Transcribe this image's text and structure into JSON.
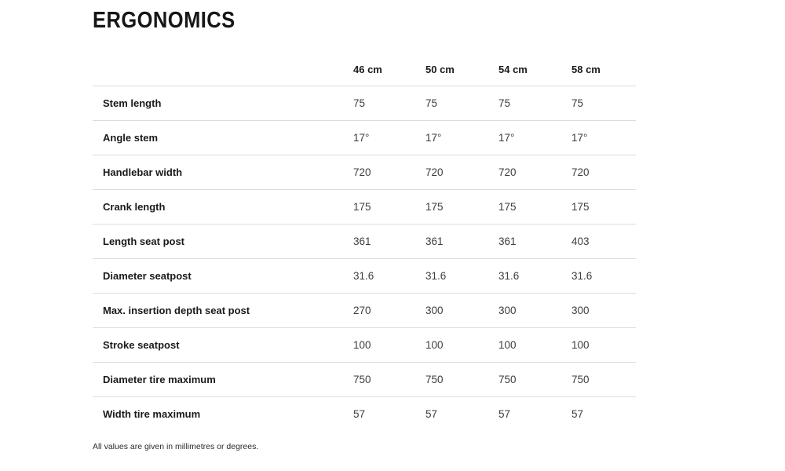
{
  "page": {
    "title": "ERGONOMICS",
    "footnote": "All values are given in millimetres or degrees."
  },
  "table": {
    "column_headers": [
      "46 cm",
      "50 cm",
      "54 cm",
      "58 cm"
    ],
    "rows": [
      {
        "label": "Stem length",
        "values": [
          "75",
          "75",
          "75",
          "75"
        ]
      },
      {
        "label": "Angle stem",
        "values": [
          "17°",
          "17°",
          "17°",
          "17°"
        ]
      },
      {
        "label": "Handlebar width",
        "values": [
          "720",
          "720",
          "720",
          "720"
        ]
      },
      {
        "label": "Crank length",
        "values": [
          "175",
          "175",
          "175",
          "175"
        ]
      },
      {
        "label": "Length seat post",
        "values": [
          "361",
          "361",
          "361",
          "403"
        ]
      },
      {
        "label": "Diameter seatpost",
        "values": [
          "31.6",
          "31.6",
          "31.6",
          "31.6"
        ]
      },
      {
        "label": "Max. insertion depth seat post",
        "values": [
          "270",
          "300",
          "300",
          "300"
        ]
      },
      {
        "label": "Stroke seatpost",
        "values": [
          "100",
          "100",
          "100",
          "100"
        ]
      },
      {
        "label": "Diameter tire maximum",
        "values": [
          "750",
          "750",
          "750",
          "750"
        ]
      },
      {
        "label": "Width tire maximum",
        "values": [
          "57",
          "57",
          "57",
          "57"
        ]
      }
    ]
  },
  "colors": {
    "background": "#ffffff",
    "heading_text": "#161616",
    "label_text": "#1a1a1a",
    "value_text": "#3d3d3d",
    "divider": "#dcdcdc"
  }
}
